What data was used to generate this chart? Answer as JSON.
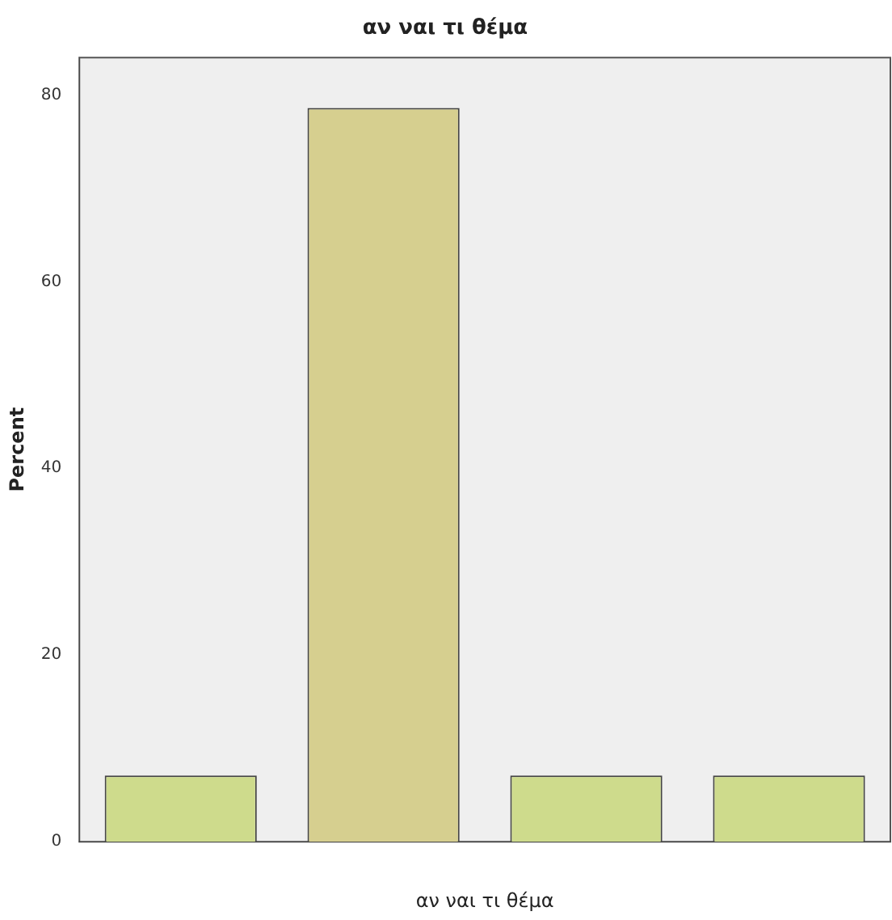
{
  "chart_data": {
    "type": "bar",
    "title": "αν ναι τι θέμα",
    "xlabel": "αν ναι τι θέμα",
    "ylabel": "Percent",
    "categories": [
      null,
      null,
      null,
      null
    ],
    "values": [
      7.1,
      78.6,
      7.1,
      7.1
    ],
    "colors": [
      "#cedb8c",
      "#d6cf8f",
      "#cedb8c",
      "#cedb8c"
    ],
    "ylim": [
      0,
      84
    ],
    "yticks": [
      0,
      20,
      40,
      60,
      80
    ],
    "grid": false,
    "legend": false
  }
}
